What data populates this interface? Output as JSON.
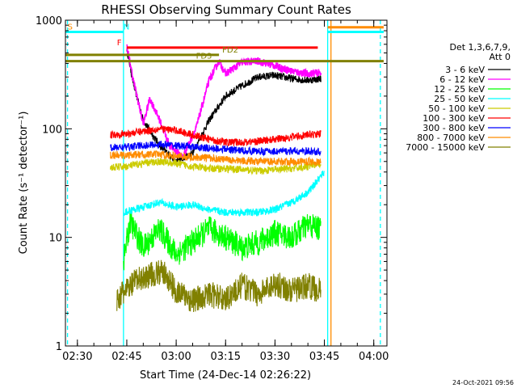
{
  "chart_data": {
    "type": "line",
    "title": "RHESSI Observing Summary Count Rates",
    "xlabel": "Start Time (24-Dec-14 02:26:22)",
    "ylabel": "Count Rate (s⁻¹ detector⁻¹)",
    "y_scale": "log",
    "ylim": [
      1,
      1000
    ],
    "xlim": [
      "02:26:22",
      "04:04:00"
    ],
    "x_ticks": [
      "02:30",
      "02:45",
      "03:00",
      "03:15",
      "03:30",
      "03:45",
      "04:00"
    ],
    "y_ticks": [
      "1",
      "10",
      "100",
      "1000"
    ],
    "legend_header": [
      "Det 1,3,6,7,9,",
      "Att 0"
    ],
    "legend_position": "right",
    "series": [
      {
        "name": "3 - 6 keV",
        "color": "#000000",
        "points": [
          [
            "02:45",
            550
          ],
          [
            "02:47",
            260
          ],
          [
            "02:50",
            120
          ],
          [
            "02:55",
            70
          ],
          [
            "03:00",
            50
          ],
          [
            "03:05",
            60
          ],
          [
            "03:10",
            120
          ],
          [
            "03:15",
            200
          ],
          [
            "03:20",
            250
          ],
          [
            "03:25",
            300
          ],
          [
            "03:30",
            310
          ],
          [
            "03:35",
            290
          ],
          [
            "03:40",
            280
          ],
          [
            "03:44",
            290
          ]
        ]
      },
      {
        "name": "6 - 12 keV",
        "color": "#ff00ff",
        "points": [
          [
            "02:45",
            580
          ],
          [
            "02:47",
            280
          ],
          [
            "02:50",
            110
          ],
          [
            "02:52",
            190
          ],
          [
            "02:55",
            120
          ],
          [
            "02:58",
            70
          ],
          [
            "03:02",
            55
          ],
          [
            "03:06",
            100
          ],
          [
            "03:10",
            280
          ],
          [
            "03:13",
            420
          ],
          [
            "03:15",
            320
          ],
          [
            "03:20",
            410
          ],
          [
            "03:25",
            420
          ],
          [
            "03:30",
            380
          ],
          [
            "03:35",
            340
          ],
          [
            "03:40",
            320
          ],
          [
            "03:44",
            330
          ]
        ]
      },
      {
        "name": "12 - 25 keV",
        "color": "#00ff00",
        "points": [
          [
            "02:44",
            6
          ],
          [
            "02:46",
            14
          ],
          [
            "02:50",
            8
          ],
          [
            "02:55",
            12
          ],
          [
            "03:00",
            7
          ],
          [
            "03:05",
            9
          ],
          [
            "03:10",
            12
          ],
          [
            "03:15",
            10
          ],
          [
            "03:20",
            8
          ],
          [
            "03:25",
            9
          ],
          [
            "03:30",
            11
          ],
          [
            "03:35",
            10
          ],
          [
            "03:40",
            13
          ],
          [
            "03:44",
            12
          ]
        ]
      },
      {
        "name": "25 - 50 keV",
        "color": "#00ffff",
        "points": [
          [
            "02:44",
            17
          ],
          [
            "02:50",
            19
          ],
          [
            "02:55",
            21
          ],
          [
            "03:00",
            19
          ],
          [
            "03:05",
            20
          ],
          [
            "03:10",
            18
          ],
          [
            "03:15",
            17
          ],
          [
            "03:20",
            17
          ],
          [
            "03:25",
            17
          ],
          [
            "03:30",
            18
          ],
          [
            "03:35",
            21
          ],
          [
            "03:40",
            26
          ],
          [
            "03:45",
            40
          ]
        ]
      },
      {
        "name": "50 - 100 keV",
        "color": "#cccc00",
        "points": [
          [
            "02:40",
            44
          ],
          [
            "02:45",
            45
          ],
          [
            "02:50",
            48
          ],
          [
            "02:55",
            50
          ],
          [
            "03:00",
            48
          ],
          [
            "03:05",
            45
          ],
          [
            "03:10",
            43
          ],
          [
            "03:15",
            43
          ],
          [
            "03:20",
            42
          ],
          [
            "03:25",
            41
          ],
          [
            "03:30",
            42
          ],
          [
            "03:35",
            43
          ],
          [
            "03:40",
            45
          ],
          [
            "03:44",
            48
          ]
        ]
      },
      {
        "name": "100 - 300 keV",
        "color": "#ff0000",
        "points": [
          [
            "02:40",
            88
          ],
          [
            "02:45",
            90
          ],
          [
            "02:50",
            95
          ],
          [
            "02:55",
            100
          ],
          [
            "03:00",
            97
          ],
          [
            "03:05",
            88
          ],
          [
            "03:10",
            80
          ],
          [
            "03:15",
            75
          ],
          [
            "03:20",
            75
          ],
          [
            "03:25",
            77
          ],
          [
            "03:30",
            80
          ],
          [
            "03:35",
            84
          ],
          [
            "03:40",
            88
          ],
          [
            "03:44",
            90
          ]
        ]
      },
      {
        "name": "300 - 800 keV",
        "color": "#0000ff",
        "points": [
          [
            "02:40",
            67
          ],
          [
            "02:45",
            68
          ],
          [
            "02:50",
            70
          ],
          [
            "02:55",
            72
          ],
          [
            "03:00",
            70
          ],
          [
            "03:05",
            68
          ],
          [
            "03:10",
            66
          ],
          [
            "03:15",
            65
          ],
          [
            "03:20",
            63
          ],
          [
            "03:25",
            62
          ],
          [
            "03:30",
            62
          ],
          [
            "03:35",
            62
          ],
          [
            "03:40",
            62
          ],
          [
            "03:44",
            61
          ]
        ]
      },
      {
        "name": "800 - 7000 keV",
        "color": "#ff8c00",
        "points": [
          [
            "02:40",
            57
          ],
          [
            "02:45",
            57
          ],
          [
            "02:50",
            58
          ],
          [
            "02:55",
            58
          ],
          [
            "03:00",
            56
          ],
          [
            "03:05",
            55
          ],
          [
            "03:10",
            54
          ],
          [
            "03:15",
            52
          ],
          [
            "03:20",
            51
          ],
          [
            "03:25",
            50
          ],
          [
            "03:30",
            50
          ],
          [
            "03:35",
            50
          ],
          [
            "03:40",
            50
          ],
          [
            "03:44",
            49
          ]
        ]
      },
      {
        "name": "7000 - 15000 keV",
        "color": "#808000",
        "points": [
          [
            "02:42",
            2.7
          ],
          [
            "02:48",
            4.0
          ],
          [
            "02:52",
            4.5
          ],
          [
            "02:56",
            4.8
          ],
          [
            "03:00",
            3.2
          ],
          [
            "03:05",
            2.6
          ],
          [
            "03:10",
            3.0
          ],
          [
            "03:15",
            2.7
          ],
          [
            "03:20",
            3.6
          ],
          [
            "03:25",
            3.0
          ],
          [
            "03:30",
            3.8
          ],
          [
            "03:35",
            3.2
          ],
          [
            "03:40",
            3.6
          ],
          [
            "03:44",
            3.2
          ]
        ]
      }
    ],
    "flag_bars": [
      {
        "label": "S",
        "label_color": "#ff8c00",
        "color": "#00ffff",
        "y": 780,
        "from": "02:26:22",
        "to": "02:44",
        "label_at": "02:27"
      },
      {
        "label": "N",
        "label_color": "#00ffff",
        "color": "#00ffff",
        "y": 780,
        "from": "03:46",
        "to": "04:03",
        "label_at": "02:44"
      },
      {
        "label": "",
        "label_color": "#ff8c00",
        "color": "#ff8c00",
        "y": 860,
        "from": "03:46",
        "to": "04:03",
        "label_at": ""
      },
      {
        "label": "F",
        "label_color": "#ff0000",
        "color": "#ff0000",
        "y": 560,
        "from": "02:45",
        "to": "03:43",
        "label_at": "02:42"
      },
      {
        "label": "FD2",
        "label_color": "#808000",
        "color": "#808000",
        "y": 480,
        "from": "02:26:22",
        "to": "03:13",
        "label_at": "03:14"
      },
      {
        "label": "FD3",
        "label_color": "#808000",
        "color": "#808000",
        "y": 420,
        "from": "02:26:22",
        "to": "04:03",
        "label_at": "03:06"
      }
    ],
    "vertical_markers": [
      {
        "at": "02:27",
        "color": "#00ffff",
        "style": "dashed"
      },
      {
        "at": "02:44",
        "color": "#00ffff",
        "style": "solid"
      },
      {
        "at": "03:46",
        "color": "#00ffff",
        "style": "solid"
      },
      {
        "at": "03:47",
        "color": "#ff8c00",
        "style": "solid"
      },
      {
        "at": "04:02",
        "color": "#00ffff",
        "style": "dashed"
      }
    ],
    "footer_date": "24-Oct-2021 09:56"
  }
}
